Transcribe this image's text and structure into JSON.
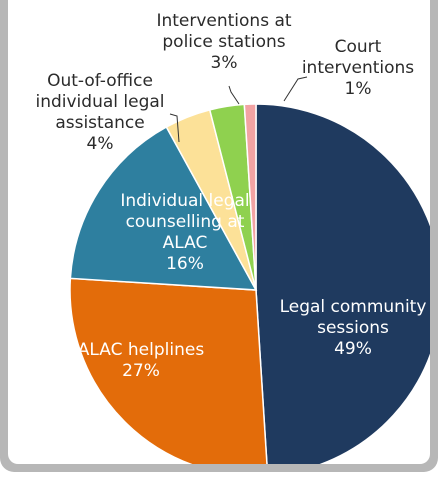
{
  "chart_data": {
    "type": "pie",
    "title": "",
    "slices": [
      {
        "label_lines": [
          "Legal community",
          "sessions",
          "49%"
        ],
        "value": 49,
        "color": "#1f3a5f"
      },
      {
        "label_lines": [
          "ALAC helplines",
          "27%"
        ],
        "value": 27,
        "color": "#e36c0a"
      },
      {
        "label_lines": [
          "Individual legal",
          "counselling at",
          "ALAC",
          "16%"
        ],
        "value": 16,
        "color": "#2e7f9f"
      },
      {
        "label_lines": [
          "Out-of-office",
          "individual legal",
          "assistance",
          "4%"
        ],
        "value": 4,
        "color": "#fce198"
      },
      {
        "label_lines": [
          "Interventions at",
          "police stations",
          "3%"
        ],
        "value": 3,
        "color": "#8fd14f"
      },
      {
        "label_lines": [
          "Court",
          "interventions",
          "1%"
        ],
        "value": 1,
        "color": "#f2a3a3"
      }
    ]
  }
}
